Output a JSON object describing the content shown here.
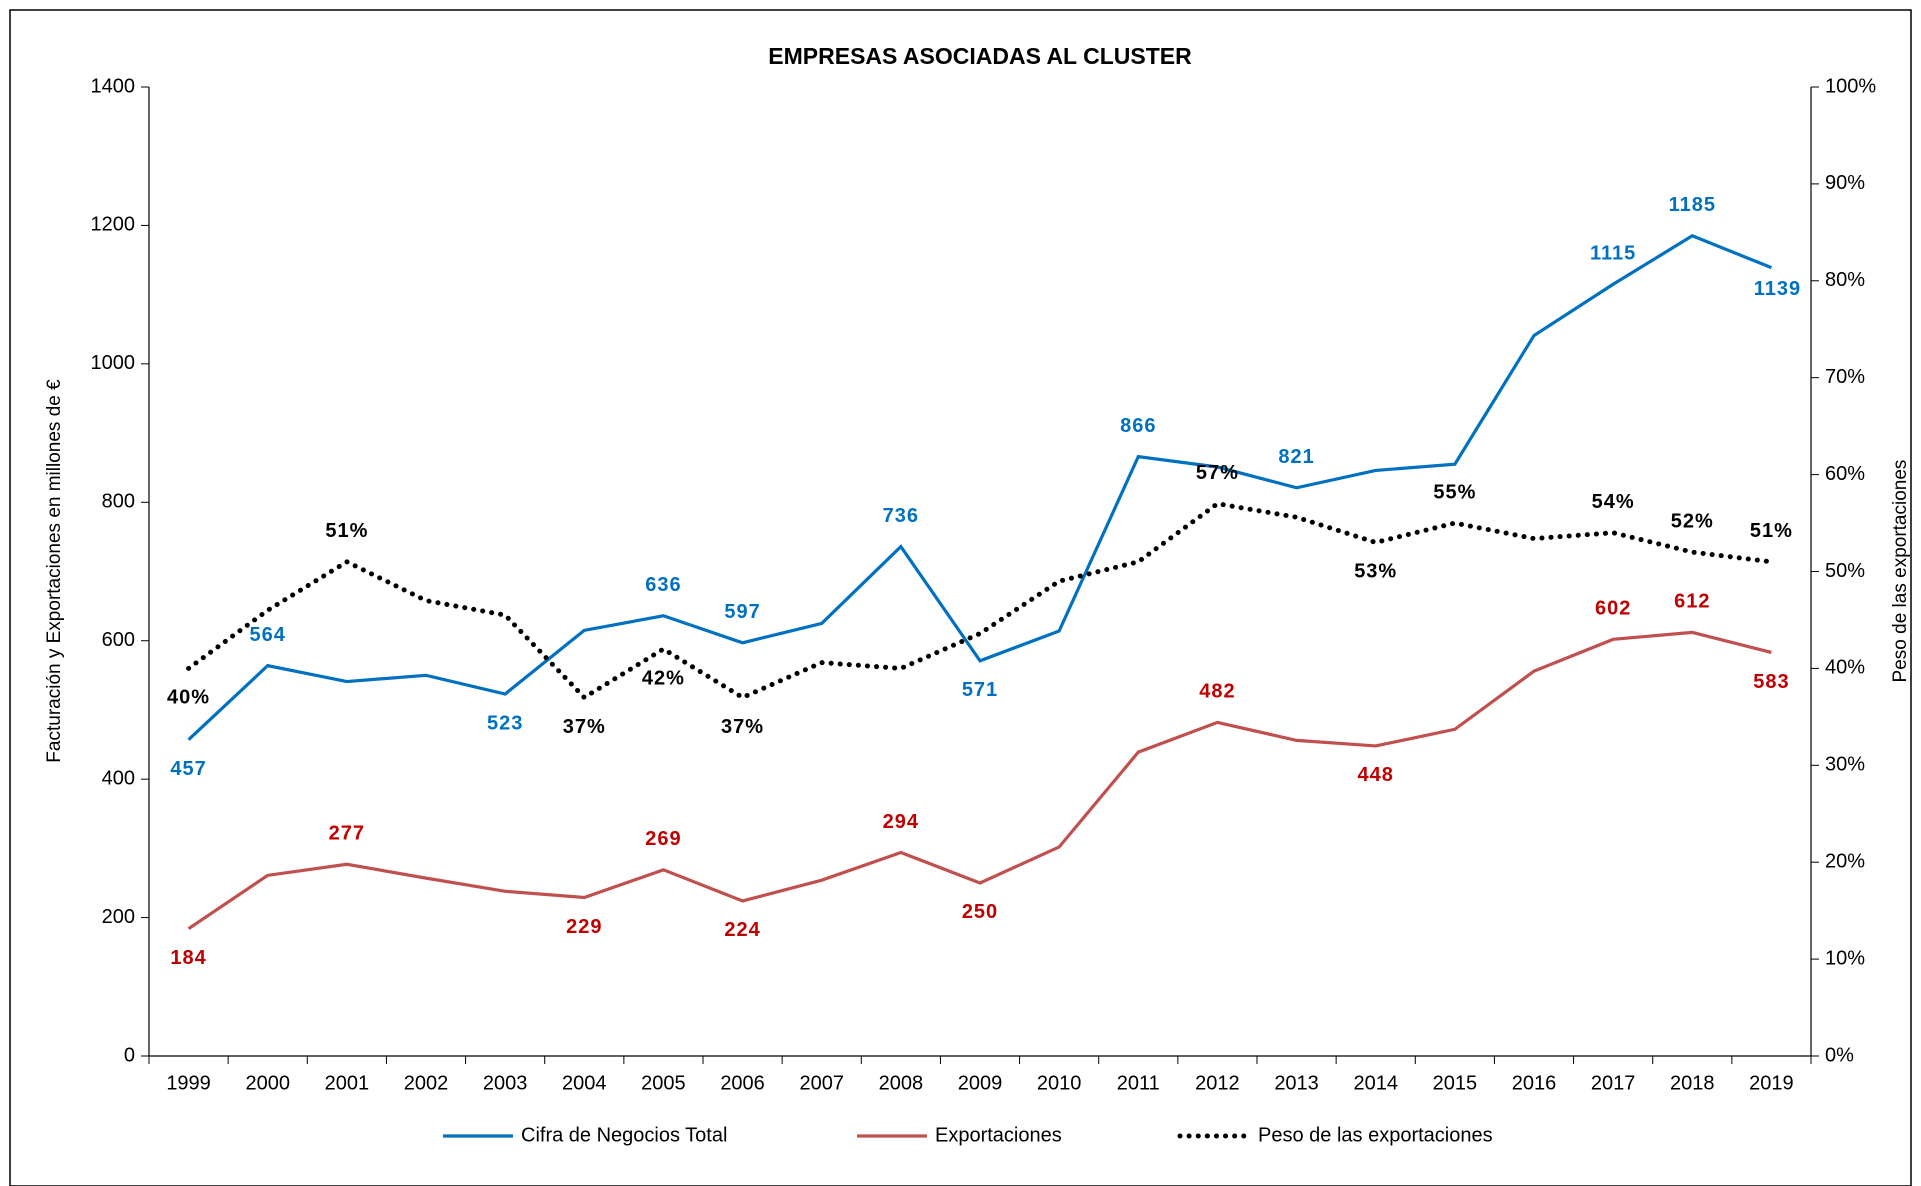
{
  "chart_data": {
    "type": "line",
    "title": "EMPRESAS ASOCIADAS AL CLUSTER",
    "y_label": "Facturación y Exportaciones en millones de €",
    "y2_label": "Peso de las exportaciones",
    "categories": [
      "1999",
      "2000",
      "2001",
      "2002",
      "2003",
      "2004",
      "2005",
      "2006",
      "2007",
      "2008",
      "2009",
      "2010",
      "2011",
      "2012",
      "2013",
      "2014",
      "2015",
      "2016",
      "2017",
      "2018",
      "2019"
    ],
    "ylim": [
      0,
      1400
    ],
    "yticks": [
      0,
      200,
      400,
      600,
      800,
      1000,
      1200,
      1400
    ],
    "y2lim": [
      0,
      100
    ],
    "y2ticks": [
      {
        "value": 0,
        "label": "0%"
      },
      {
        "value": 10,
        "label": "10%"
      },
      {
        "value": 20,
        "label": "20%"
      },
      {
        "value": 30,
        "label": "30%"
      },
      {
        "value": 40,
        "label": "40%"
      },
      {
        "value": 50,
        "label": "50%"
      },
      {
        "value": 60,
        "label": "60%"
      },
      {
        "value": 70,
        "label": "70%"
      },
      {
        "value": 80,
        "label": "80%"
      },
      {
        "value": 90,
        "label": "90%"
      },
      {
        "value": 100,
        "label": "100%"
      }
    ],
    "legend": "bottom",
    "series": [
      {
        "name": "Cifra de Negocios Total",
        "color": "#0070c0",
        "label_color": "#0070c0",
        "style": "solid",
        "values": [
          457,
          564,
          541,
          550,
          523,
          615,
          636,
          597,
          625,
          736,
          571,
          614,
          866,
          851,
          821,
          846,
          855,
          1041,
          1115,
          1185,
          1139
        ],
        "value_labels": [
          "457",
          "564",
          null,
          null,
          "523",
          null,
          "636",
          "597",
          null,
          "736",
          "571",
          null,
          "866",
          null,
          "821",
          null,
          null,
          null,
          "1115",
          "1185",
          "1139"
        ]
      },
      {
        "name": "Exportaciones",
        "color": "#c0504d",
        "label_color": "#c00000",
        "style": "solid",
        "values": [
          184,
          261,
          277,
          257,
          238,
          229,
          269,
          224,
          254,
          294,
          250,
          302,
          439,
          482,
          456,
          448,
          472,
          556,
          602,
          612,
          583
        ],
        "value_labels": [
          "184",
          null,
          "277",
          null,
          null,
          "229",
          "269",
          "224",
          null,
          "294",
          "250",
          null,
          null,
          "482",
          null,
          "448",
          null,
          null,
          "602",
          "612",
          "583"
        ]
      },
      {
        "name": "Peso de las exportaciones",
        "color": "#000000",
        "label_color": "#000000",
        "style": "dotted",
        "axis": "y2",
        "values": [
          40,
          46,
          51,
          47,
          45.5,
          37,
          42,
          37,
          40.6,
          40,
          43.6,
          49,
          51,
          57,
          55.6,
          53,
          55,
          53.4,
          54,
          52,
          51
        ],
        "value_labels": [
          "40%",
          null,
          "51%",
          null,
          null,
          "37%",
          "42%",
          "37%",
          null,
          null,
          null,
          null,
          null,
          "57%",
          null,
          "53%",
          "55%",
          null,
          "54%",
          "52%",
          "51%"
        ]
      }
    ]
  }
}
